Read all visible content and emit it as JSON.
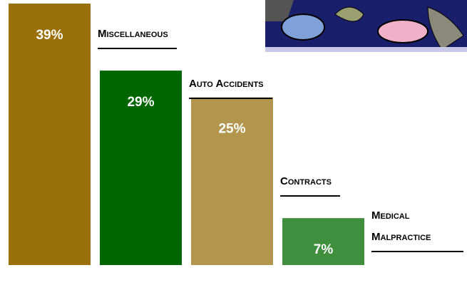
{
  "chart_data": {
    "type": "bar",
    "categories": [
      "Miscellaneous",
      "Auto Accidents",
      "Contracts",
      "Medical Malpractice"
    ],
    "values": [
      39,
      29,
      25,
      7
    ],
    "value_labels": [
      "39%",
      "29%",
      "25%",
      "7%"
    ],
    "colors": [
      "#9a7109",
      "#006600",
      "#b3964e",
      "#3f8f3f"
    ]
  }
}
